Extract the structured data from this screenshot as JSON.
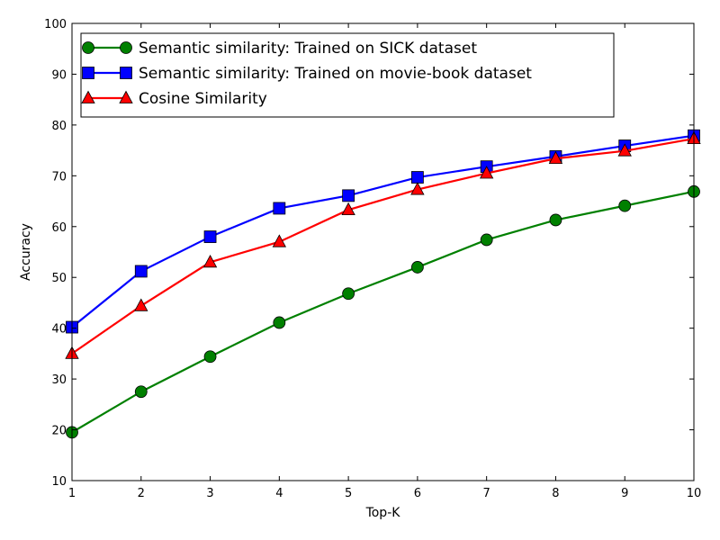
{
  "chart_data": {
    "type": "line",
    "title": "",
    "xlabel": "Top-K",
    "ylabel": "Accuracy",
    "xlim": [
      1,
      10
    ],
    "ylim": [
      10,
      100
    ],
    "x": [
      1,
      2,
      3,
      4,
      5,
      6,
      7,
      8,
      9,
      10
    ],
    "xticks": [
      "1",
      "2",
      "3",
      "4",
      "5",
      "6",
      "7",
      "8",
      "9",
      "10"
    ],
    "yticks": [
      "10",
      "20",
      "30",
      "40",
      "50",
      "60",
      "70",
      "80",
      "90",
      "100"
    ],
    "grid": false,
    "legend_position": "top-left",
    "series": [
      {
        "name": "Semantic similarity: Trained on SICK dataset",
        "color": "#008000",
        "marker": "circle",
        "values": [
          19.5,
          27.5,
          34.4,
          41.1,
          46.8,
          52.0,
          57.4,
          61.3,
          64.1,
          66.9
        ]
      },
      {
        "name": "Semantic similarity: Trained on movie-book dataset",
        "color": "#0000ff",
        "marker": "square",
        "values": [
          40.2,
          51.2,
          58.0,
          63.6,
          66.1,
          69.7,
          71.8,
          73.8,
          75.9,
          77.9
        ]
      },
      {
        "name": "Cosine Similarity",
        "color": "#ff0000",
        "marker": "triangle",
        "values": [
          35.0,
          44.4,
          53.0,
          57.0,
          63.3,
          67.3,
          70.5,
          73.4,
          74.9,
          77.3
        ]
      }
    ]
  }
}
